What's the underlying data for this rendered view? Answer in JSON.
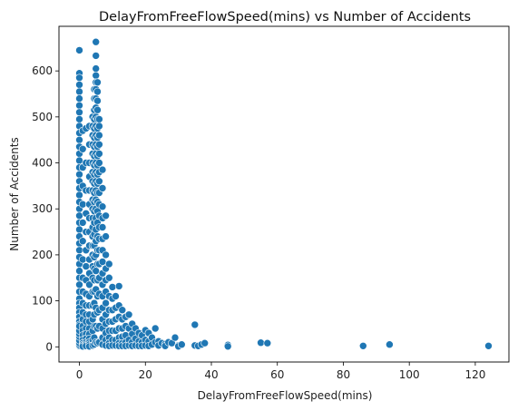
{
  "chart_data": {
    "type": "scatter",
    "title": "DelayFromFreeFlowSpeed(mins) vs Number of Accidents",
    "xlabel": "DelayFromFreeFlowSpeed(mins)",
    "ylabel": "Number of Accidents",
    "xlim": [
      -6.2,
      130.2
    ],
    "ylim": [
      -33,
      697
    ],
    "xticks": [
      0,
      20,
      40,
      60,
      80,
      100,
      120
    ],
    "yticks": [
      0,
      100,
      200,
      300,
      400,
      500,
      600
    ],
    "grid": false,
    "legend": "none",
    "marker_color": "#1f77b4",
    "series": [
      {
        "name": "",
        "x": [
          0,
          0,
          0,
          0,
          0,
          0,
          0,
          0,
          0,
          0,
          0,
          0,
          0,
          0,
          0,
          0,
          0,
          0,
          0,
          0,
          0,
          0,
          0,
          0,
          0,
          0,
          0,
          0,
          0,
          0,
          0,
          0,
          0,
          0,
          0,
          0,
          0,
          0,
          0,
          0,
          0,
          0,
          0,
          0,
          0,
          0,
          0,
          0,
          0,
          0,
          0,
          0,
          0,
          0,
          0,
          0,
          0,
          0,
          0,
          0,
          1,
          1,
          1,
          1,
          1,
          1,
          1,
          1,
          1,
          1,
          1,
          1,
          1,
          1,
          1,
          1,
          1,
          1,
          1,
          1,
          2,
          2,
          2,
          2,
          2,
          2,
          2,
          2,
          2,
          2,
          2,
          2,
          2,
          2,
          2,
          2,
          2,
          2,
          3,
          3,
          3,
          3,
          3,
          3,
          3,
          3,
          3,
          3,
          3,
          3,
          3,
          3,
          3,
          3,
          3,
          3,
          3,
          3,
          3,
          3,
          4,
          4,
          4,
          4,
          4,
          4,
          4,
          4,
          4,
          4,
          4,
          4,
          4,
          4,
          4,
          4,
          4,
          4,
          4,
          4,
          4,
          4,
          4,
          4,
          4.5,
          4.5,
          4.5,
          4.5,
          4.5,
          4.5,
          4.5,
          4.5,
          4.5,
          4.5,
          4.5,
          4.5,
          4.5,
          4.5,
          4.5,
          4.5,
          4.5,
          4.5,
          4.5,
          4.5,
          4.5,
          4.5,
          4.5,
          4.5,
          4.5,
          4.5,
          5,
          5,
          5,
          5,
          5,
          5,
          5,
          5,
          5,
          5,
          5,
          5,
          5,
          5,
          5,
          5,
          5,
          5,
          5,
          5,
          5,
          5,
          5,
          5,
          5,
          5,
          5,
          5,
          5.5,
          5.5,
          5.5,
          5.5,
          5.5,
          5.5,
          5.5,
          5.5,
          5.5,
          5.5,
          5.5,
          5.5,
          5.5,
          5.5,
          5.5,
          5.5,
          5.5,
          5.5,
          5.5,
          5.5,
          5.5,
          5.5,
          5.5,
          5.5,
          6,
          6,
          6,
          6,
          6,
          6,
          6,
          6,
          6,
          6,
          6,
          6,
          6,
          6,
          6,
          6,
          6,
          6,
          6,
          6,
          7,
          7,
          7,
          7,
          7,
          7,
          7,
          7,
          7,
          7,
          7,
          7,
          7,
          7,
          7,
          7,
          8,
          8,
          8,
          8,
          8,
          8,
          8,
          8,
          8,
          8,
          8,
          8,
          9,
          9,
          9,
          9,
          9,
          9,
          9,
          9,
          9,
          10,
          10,
          10,
          10,
          10,
          10,
          10,
          11,
          11,
          11,
          11,
          11,
          11,
          12,
          12,
          12,
          12,
          12,
          12,
          12,
          13,
          13,
          13,
          13,
          13,
          13,
          14,
          14,
          14,
          14,
          14,
          15,
          15,
          15,
          15,
          16,
          16,
          16,
          16,
          17,
          17,
          17,
          18,
          18,
          18,
          19,
          19,
          19,
          20,
          20,
          20,
          21,
          21,
          21,
          22,
          22,
          23,
          23,
          24,
          24,
          25,
          26,
          26,
          27,
          28,
          29,
          30,
          30,
          31,
          35,
          35,
          36,
          37,
          38,
          45,
          45,
          55,
          57,
          86,
          94,
          124
        ],
        "y": [
          645,
          595,
          585,
          570,
          555,
          540,
          525,
          510,
          495,
          480,
          465,
          450,
          435,
          420,
          405,
          390,
          375,
          360,
          345,
          330,
          315,
          300,
          285,
          270,
          255,
          240,
          225,
          210,
          195,
          180,
          165,
          150,
          135,
          120,
          105,
          95,
          85,
          75,
          65,
          55,
          48,
          42,
          36,
          30,
          25,
          20,
          16,
          12,
          9,
          6,
          3,
          1,
          2,
          4,
          8,
          14,
          22,
          28,
          35,
          45,
          470,
          430,
          390,
          350,
          310,
          270,
          230,
          190,
          150,
          120,
          95,
          75,
          60,
          45,
          35,
          25,
          15,
          8,
          4,
          1,
          475,
          400,
          340,
          290,
          250,
          210,
          175,
          145,
          115,
          90,
          70,
          55,
          40,
          28,
          18,
          10,
          5,
          2,
          480,
          440,
          400,
          370,
          340,
          310,
          280,
          250,
          220,
          190,
          160,
          135,
          110,
          90,
          70,
          55,
          40,
          28,
          18,
          10,
          5,
          1,
          500,
          480,
          460,
          440,
          420,
          400,
          380,
          360,
          340,
          320,
          300,
          280,
          260,
          240,
          220,
          200,
          175,
          150,
          120,
          90,
          60,
          35,
          15,
          3,
          560,
          540,
          515,
          495,
          475,
          455,
          435,
          415,
          395,
          375,
          355,
          335,
          315,
          295,
          270,
          245,
          220,
          195,
          170,
          145,
          120,
          95,
          70,
          45,
          20,
          5,
          663,
          633,
          605,
          590,
          575,
          560,
          540,
          520,
          500,
          480,
          460,
          440,
          420,
          400,
          380,
          360,
          340,
          320,
          300,
          280,
          255,
          230,
          200,
          165,
          125,
          85,
          45,
          10,
          575,
          555,
          535,
          515,
          495,
          475,
          455,
          435,
          415,
          395,
          375,
          355,
          335,
          315,
          295,
          270,
          240,
          210,
          180,
          145,
          110,
          75,
          40,
          8,
          495,
          480,
          460,
          440,
          420,
          400,
          380,
          360,
          335,
          310,
          285,
          260,
          235,
          210,
          180,
          150,
          115,
          80,
          45,
          10,
          385,
          345,
          305,
          280,
          260,
          235,
          210,
          185,
          160,
          135,
          110,
          85,
          60,
          40,
          20,
          5,
          285,
          240,
          200,
          170,
          145,
          120,
          95,
          70,
          50,
          30,
          15,
          3,
          180,
          150,
          110,
          80,
          55,
          35,
          20,
          8,
          2,
          130,
          105,
          80,
          55,
          35,
          15,
          3,
          110,
          85,
          60,
          35,
          15,
          3,
          132,
          90,
          65,
          40,
          20,
          8,
          2,
          80,
          60,
          40,
          22,
          8,
          2,
          65,
          45,
          25,
          10,
          2,
          70,
          40,
          15,
          3,
          50,
          28,
          10,
          2,
          40,
          18,
          3,
          30,
          12,
          2,
          25,
          10,
          2,
          36,
          15,
          3,
          30,
          12,
          2,
          20,
          5,
          40,
          10,
          12,
          3,
          8,
          6,
          2,
          10,
          8,
          20,
          3,
          1,
          5,
          48,
          3,
          2,
          5,
          8,
          4,
          1,
          9,
          8,
          2,
          5,
          2
        ]
      }
    ]
  }
}
